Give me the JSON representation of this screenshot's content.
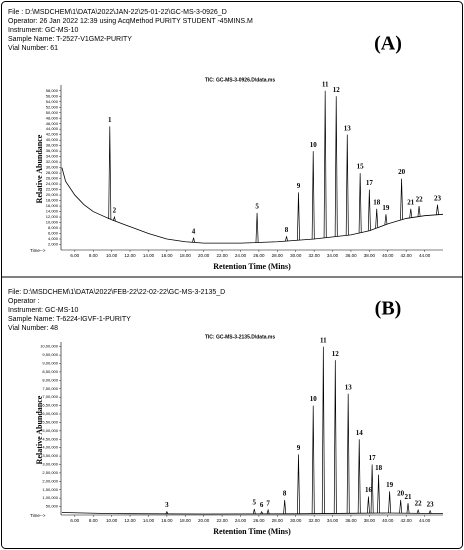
{
  "chart_data": [
    {
      "type": "line",
      "header_lines": [
        "File  : D:\\MSDCHEM\\1\\DATA\\2022\\JAN-22\\25-01-22\\GC-MS-3-0926_D",
        "Operator: 26 Jan 2022   12:39   using AcqMethod PURITY STUDENT -45MINS.M",
        "Instrument: GC-MS-10",
        "Sample Name: T-2527-V1GM2-PURITY",
        "Vial Number: 61"
      ],
      "panel_label": "(A)",
      "title": "TIC: GC-MS-3-0926.D\\data.ms",
      "ylabel": "Relative Abundance",
      "xlabel": "Retention Time (Mins)",
      "time_label": "Time-->",
      "color": "#000000",
      "x": [
        4.6,
        5,
        6,
        7,
        8,
        9,
        10,
        12,
        14,
        16,
        18,
        20,
        24,
        28,
        32,
        36,
        38,
        40,
        42,
        44,
        46
      ],
      "values": [
        30000,
        25000,
        20000,
        16500,
        14000,
        12500,
        11000,
        8500,
        6000,
        4000,
        3000,
        2500,
        2500,
        3000,
        4000,
        5500,
        7000,
        9500,
        11500,
        12500,
        13000
      ],
      "peaks": {
        "labels": [
          "1",
          "2",
          "4",
          "5",
          "8",
          "9",
          "10",
          "11",
          "12",
          "13",
          "15",
          "17",
          "18",
          "19",
          "20",
          "21",
          "22",
          "23"
        ],
        "x": [
          9.8,
          10.3,
          18.9,
          25.8,
          29.0,
          30.3,
          31.9,
          33.2,
          34.4,
          35.6,
          37.0,
          38.0,
          38.8,
          39.8,
          41.5,
          42.5,
          43.4,
          45.4
        ],
        "values": [
          45000,
          12000,
          4500,
          13500,
          5000,
          21000,
          36000,
          58000,
          56000,
          42000,
          28000,
          22000,
          15000,
          13000,
          26000,
          15000,
          16000,
          16500
        ]
      },
      "xlim": [
        4.5,
        46
      ],
      "xticks": [
        {
          "value": 6,
          "label": "6.00"
        },
        {
          "value": 8,
          "label": "8.00"
        },
        {
          "value": 10,
          "label": "10.00"
        },
        {
          "value": 12,
          "label": "12.00"
        },
        {
          "value": 14,
          "label": "14.00"
        },
        {
          "value": 16,
          "label": "16.00"
        },
        {
          "value": 18,
          "label": "18.00"
        },
        {
          "value": 20,
          "label": "20.00"
        },
        {
          "value": 22,
          "label": "22.00"
        },
        {
          "value": 24,
          "label": "24.00"
        },
        {
          "value": 26,
          "label": "26.00"
        },
        {
          "value": 28,
          "label": "28.00"
        },
        {
          "value": 30,
          "label": "30.00"
        },
        {
          "value": 32,
          "label": "32.00"
        },
        {
          "value": 34,
          "label": "34.00"
        },
        {
          "value": 36,
          "label": "36.00"
        },
        {
          "value": 38,
          "label": "38.00"
        },
        {
          "value": 40,
          "label": "40.00"
        },
        {
          "value": 42,
          "label": "42.00"
        },
        {
          "value": 44,
          "label": "44.00"
        }
      ],
      "ylim": [
        0,
        59000
      ],
      "yticks": [
        {
          "value": 2000,
          "label": "2,000"
        },
        {
          "value": 4000,
          "label": "4,000"
        },
        {
          "value": 6000,
          "label": "6,000"
        },
        {
          "value": 8000,
          "label": "8,000"
        },
        {
          "value": 10000,
          "label": "10,000"
        },
        {
          "value": 12000,
          "label": "12,000"
        },
        {
          "value": 14000,
          "label": "14,000"
        },
        {
          "value": 16000,
          "label": "16,000"
        },
        {
          "value": 18000,
          "label": "18,000"
        },
        {
          "value": 20000,
          "label": "20,000"
        },
        {
          "value": 22000,
          "label": "22,000"
        },
        {
          "value": 24000,
          "label": "24,000"
        },
        {
          "value": 26000,
          "label": "26,000"
        },
        {
          "value": 28000,
          "label": "28,000"
        },
        {
          "value": 30000,
          "label": "30,000"
        },
        {
          "value": 32000,
          "label": "32,000"
        },
        {
          "value": 34000,
          "label": "34,000"
        },
        {
          "value": 36000,
          "label": "36,000"
        },
        {
          "value": 38000,
          "label": "38,000"
        },
        {
          "value": 40000,
          "label": "40,000"
        },
        {
          "value": 42000,
          "label": "42,000"
        },
        {
          "value": 44000,
          "label": "44,000"
        },
        {
          "value": 46000,
          "label": "46,000"
        },
        {
          "value": 48000,
          "label": "48,000"
        },
        {
          "value": 50000,
          "label": "50,000"
        },
        {
          "value": 52000,
          "label": "52,000"
        },
        {
          "value": 54000,
          "label": "54,000"
        },
        {
          "value": 56000,
          "label": "56,000"
        },
        {
          "value": 58000,
          "label": "58,000"
        }
      ]
    },
    {
      "type": "line",
      "header_lines": [
        "File: D:\\MSDCHEM\\1\\DATA\\2022\\FEB-22\\22-02-22\\GC-MS-3-2135_D",
        "Operator :",
        "Instrument: GC-MS-10",
        "Sample Name: T-6224-IGVF-1-PURITY",
        "Vial Number: 48"
      ],
      "panel_label": "(B)",
      "title": "TIC: GC-MS-3-2135.D\\data.ms",
      "ylabel": "Relative Abundance",
      "xlabel": "Retention Time (Mins)",
      "time_label": "Time-->",
      "color": "#000000",
      "x": [
        4.6,
        10,
        20,
        30,
        36,
        40,
        46
      ],
      "values": [
        15000,
        8000,
        6000,
        7000,
        10000,
        12000,
        8000
      ],
      "peaks": {
        "labels": [
          "3",
          "5",
          "6",
          "7",
          "8",
          "9",
          "10",
          "11",
          "12",
          "13",
          "14",
          "16",
          "17",
          "18",
          "19",
          "20",
          "21",
          "22",
          "23"
        ],
        "x": [
          16.0,
          25.5,
          26.3,
          27.0,
          28.8,
          30.3,
          31.9,
          33.0,
          34.3,
          35.7,
          36.9,
          37.9,
          38.3,
          39.0,
          40.2,
          41.4,
          42.2,
          43.3,
          44.6
        ],
        "values": [
          20000,
          35000,
          20000,
          30000,
          90000,
          360000,
          650000,
          1000000,
          920000,
          720000,
          450000,
          110000,
          300000,
          240000,
          140000,
          90000,
          70000,
          30000,
          25000
        ]
      },
      "xlim": [
        4.5,
        46
      ],
      "xticks": [
        {
          "value": 6,
          "label": "6.00"
        },
        {
          "value": 8,
          "label": "8.00"
        },
        {
          "value": 10,
          "label": "10.00"
        },
        {
          "value": 12,
          "label": "12.00"
        },
        {
          "value": 14,
          "label": "14.00"
        },
        {
          "value": 16,
          "label": "16.00"
        },
        {
          "value": 18,
          "label": "18.00"
        },
        {
          "value": 20,
          "label": "20.00"
        },
        {
          "value": 22,
          "label": "22.00"
        },
        {
          "value": 24,
          "label": "24.00"
        },
        {
          "value": 26,
          "label": "26.00"
        },
        {
          "value": 28,
          "label": "28.00"
        },
        {
          "value": 30,
          "label": "30.00"
        },
        {
          "value": 32,
          "label": "32.00"
        },
        {
          "value": 34,
          "label": "34.00"
        },
        {
          "value": 36,
          "label": "36.00"
        },
        {
          "value": 38,
          "label": "38.00"
        },
        {
          "value": 40,
          "label": "40.00"
        },
        {
          "value": 42,
          "label": "42.00"
        },
        {
          "value": 44,
          "label": "44.00"
        }
      ],
      "ylim": [
        0,
        1010000
      ],
      "yticks": [
        {
          "value": 50000,
          "label": "50,000"
        },
        {
          "value": 100000,
          "label": "1,00,000"
        },
        {
          "value": 150000,
          "label": "1,50,000"
        },
        {
          "value": 200000,
          "label": "2,00,000"
        },
        {
          "value": 250000,
          "label": "2,50,000"
        },
        {
          "value": 300000,
          "label": "3,00,000"
        },
        {
          "value": 350000,
          "label": "3,50,000"
        },
        {
          "value": 400000,
          "label": "4,00,000"
        },
        {
          "value": 450000,
          "label": "4,50,000"
        },
        {
          "value": 500000,
          "label": "5,00,000"
        },
        {
          "value": 550000,
          "label": "5,50,000"
        },
        {
          "value": 600000,
          "label": "6,00,000"
        },
        {
          "value": 650000,
          "label": "6,50,000"
        },
        {
          "value": 700000,
          "label": "7,00,000"
        },
        {
          "value": 750000,
          "label": "7,50,000"
        },
        {
          "value": 800000,
          "label": "8,00,000"
        },
        {
          "value": 850000,
          "label": "8,50,000"
        },
        {
          "value": 900000,
          "label": "9,00,000"
        },
        {
          "value": 950000,
          "label": "9,50,000"
        },
        {
          "value": 1000000,
          "label": "10,00,000"
        }
      ]
    }
  ]
}
